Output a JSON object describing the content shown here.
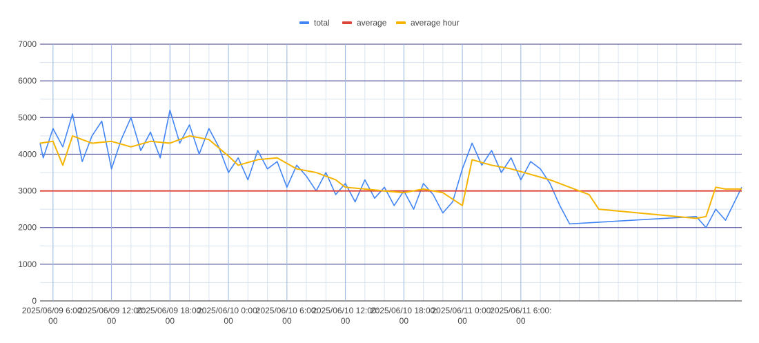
{
  "chart_data": {
    "type": "line",
    "title": "",
    "xlabel": "",
    "ylabel": "",
    "ylim": [
      0,
      7000
    ],
    "xlim": [
      "2025-06-09 04:40",
      "2025-06-12 04:40"
    ],
    "y_ticks": [
      "0",
      "1000",
      "2000",
      "3000",
      "4000",
      "5000",
      "6000",
      "7000"
    ],
    "x_ticks": [
      {
        "at": "2025-06-09 06:00",
        "line1": "2025/06/09 6:00:",
        "line2": "00"
      },
      {
        "at": "2025-06-09 12:00",
        "line1": "2025/06/09 12:00:",
        "line2": "00"
      },
      {
        "at": "2025-06-09 18:00",
        "line1": "2025/06/09 18:00:",
        "line2": "00"
      },
      {
        "at": "2025-06-10 00:00",
        "line1": "2025/06/10 0:00:",
        "line2": "00"
      },
      {
        "at": "2025-06-10 06:00",
        "line1": "2025/06/10 6:00:",
        "line2": "00"
      },
      {
        "at": "2025-06-10 12:00",
        "line1": "2025/06/10 12:00:",
        "line2": "00"
      },
      {
        "at": "2025-06-10 18:00",
        "line1": "2025/06/10 18:00:",
        "line2": "00"
      },
      {
        "at": "2025-06-11 00:00",
        "line1": "2025/06/11 0:00:",
        "line2": "00"
      },
      {
        "at": "2025-06-11 06:00",
        "line1": "2025/06/11 6:00:",
        "line2": "00"
      }
    ],
    "grid": true,
    "legend_position": "top",
    "series": [
      {
        "name": "total",
        "color": "#4285f4",
        "x": [
          "2025-06-09 04:40",
          "2025-06-09 05:00",
          "2025-06-09 06:00",
          "2025-06-09 07:00",
          "2025-06-09 08:00",
          "2025-06-09 09:00",
          "2025-06-09 10:00",
          "2025-06-09 11:00",
          "2025-06-09 12:00",
          "2025-06-09 13:00",
          "2025-06-09 14:00",
          "2025-06-09 15:00",
          "2025-06-09 16:00",
          "2025-06-09 17:00",
          "2025-06-09 18:00",
          "2025-06-09 19:00",
          "2025-06-09 20:00",
          "2025-06-09 21:00",
          "2025-06-09 22:00",
          "2025-06-09 23:00",
          "2025-06-10 00:00",
          "2025-06-10 01:00",
          "2025-06-10 02:00",
          "2025-06-10 03:00",
          "2025-06-10 04:00",
          "2025-06-10 05:00",
          "2025-06-10 06:00",
          "2025-06-10 07:00",
          "2025-06-10 08:00",
          "2025-06-10 09:00",
          "2025-06-10 10:00",
          "2025-06-10 11:00",
          "2025-06-10 12:00",
          "2025-06-10 13:00",
          "2025-06-10 14:00",
          "2025-06-10 15:00",
          "2025-06-10 16:00",
          "2025-06-10 17:00",
          "2025-06-10 18:00",
          "2025-06-10 19:00",
          "2025-06-10 20:00",
          "2025-06-10 21:00",
          "2025-06-10 22:00",
          "2025-06-10 23:00",
          "2025-06-11 00:00",
          "2025-06-11 01:00",
          "2025-06-11 02:00",
          "2025-06-11 03:00",
          "2025-06-11 04:00",
          "2025-06-11 05:00",
          "2025-06-11 06:00",
          "2025-06-11 07:00",
          "2025-06-11 08:00",
          "2025-06-11 09:00",
          "2025-06-11 10:00",
          "2025-06-11 11:00",
          "2025-06-12 00:00",
          "2025-06-12 01:00",
          "2025-06-12 02:00",
          "2025-06-12 03:00",
          "2025-06-12 04:40"
        ],
        "values": [
          4300,
          3900,
          4700,
          4200,
          5100,
          3800,
          4500,
          4900,
          3600,
          4400,
          5000,
          4100,
          4600,
          3900,
          5200,
          4300,
          4800,
          4000,
          4700,
          4200,
          3500,
          3900,
          3300,
          4100,
          3600,
          3800,
          3100,
          3700,
          3400,
          3000,
          3500,
          2900,
          3200,
          2700,
          3300,
          2800,
          3100,
          2600,
          3000,
          2500,
          3200,
          2900,
          2400,
          2700,
          3600,
          4300,
          3700,
          4100,
          3500,
          3900,
          3300,
          3800,
          3600,
          3200,
          2600,
          2100,
          2300,
          2000,
          2500,
          2200,
          3100
        ]
      },
      {
        "name": "average",
        "color": "#db4437",
        "x": [
          "2025-06-09 04:40",
          "2025-06-12 04:40"
        ],
        "values": [
          3000,
          3000
        ]
      },
      {
        "name": "average hour",
        "color": "#f4b400",
        "x": [
          "2025-06-09 04:40",
          "2025-06-09 06:00",
          "2025-06-09 07:00",
          "2025-06-09 08:00",
          "2025-06-09 10:00",
          "2025-06-09 12:00",
          "2025-06-09 14:00",
          "2025-06-09 16:00",
          "2025-06-09 18:00",
          "2025-06-09 20:00",
          "2025-06-09 22:00",
          "2025-06-10 00:00",
          "2025-06-10 01:00",
          "2025-06-10 03:00",
          "2025-06-10 05:00",
          "2025-06-10 07:00",
          "2025-06-10 09:00",
          "2025-06-10 11:00",
          "2025-06-10 12:00",
          "2025-06-10 14:00",
          "2025-06-10 16:00",
          "2025-06-10 18:00",
          "2025-06-10 20:00",
          "2025-06-10 22:00",
          "2025-06-11 00:00",
          "2025-06-11 01:00",
          "2025-06-11 03:00",
          "2025-06-11 05:00",
          "2025-06-11 07:00",
          "2025-06-11 09:00",
          "2025-06-11 11:00",
          "2025-06-11 13:00",
          "2025-06-11 14:00",
          "2025-06-12 00:00",
          "2025-06-12 01:00",
          "2025-06-12 02:00",
          "2025-06-12 03:00",
          "2025-06-12 04:40"
        ],
        "values": [
          4300,
          4350,
          3700,
          4500,
          4300,
          4350,
          4200,
          4350,
          4300,
          4500,
          4400,
          3950,
          3700,
          3850,
          3900,
          3600,
          3500,
          3300,
          3100,
          3050,
          3000,
          2950,
          3050,
          2950,
          2600,
          3850,
          3700,
          3600,
          3450,
          3300,
          3100,
          2900,
          2500,
          2250,
          2300,
          3100,
          3050,
          3050
        ]
      }
    ]
  }
}
